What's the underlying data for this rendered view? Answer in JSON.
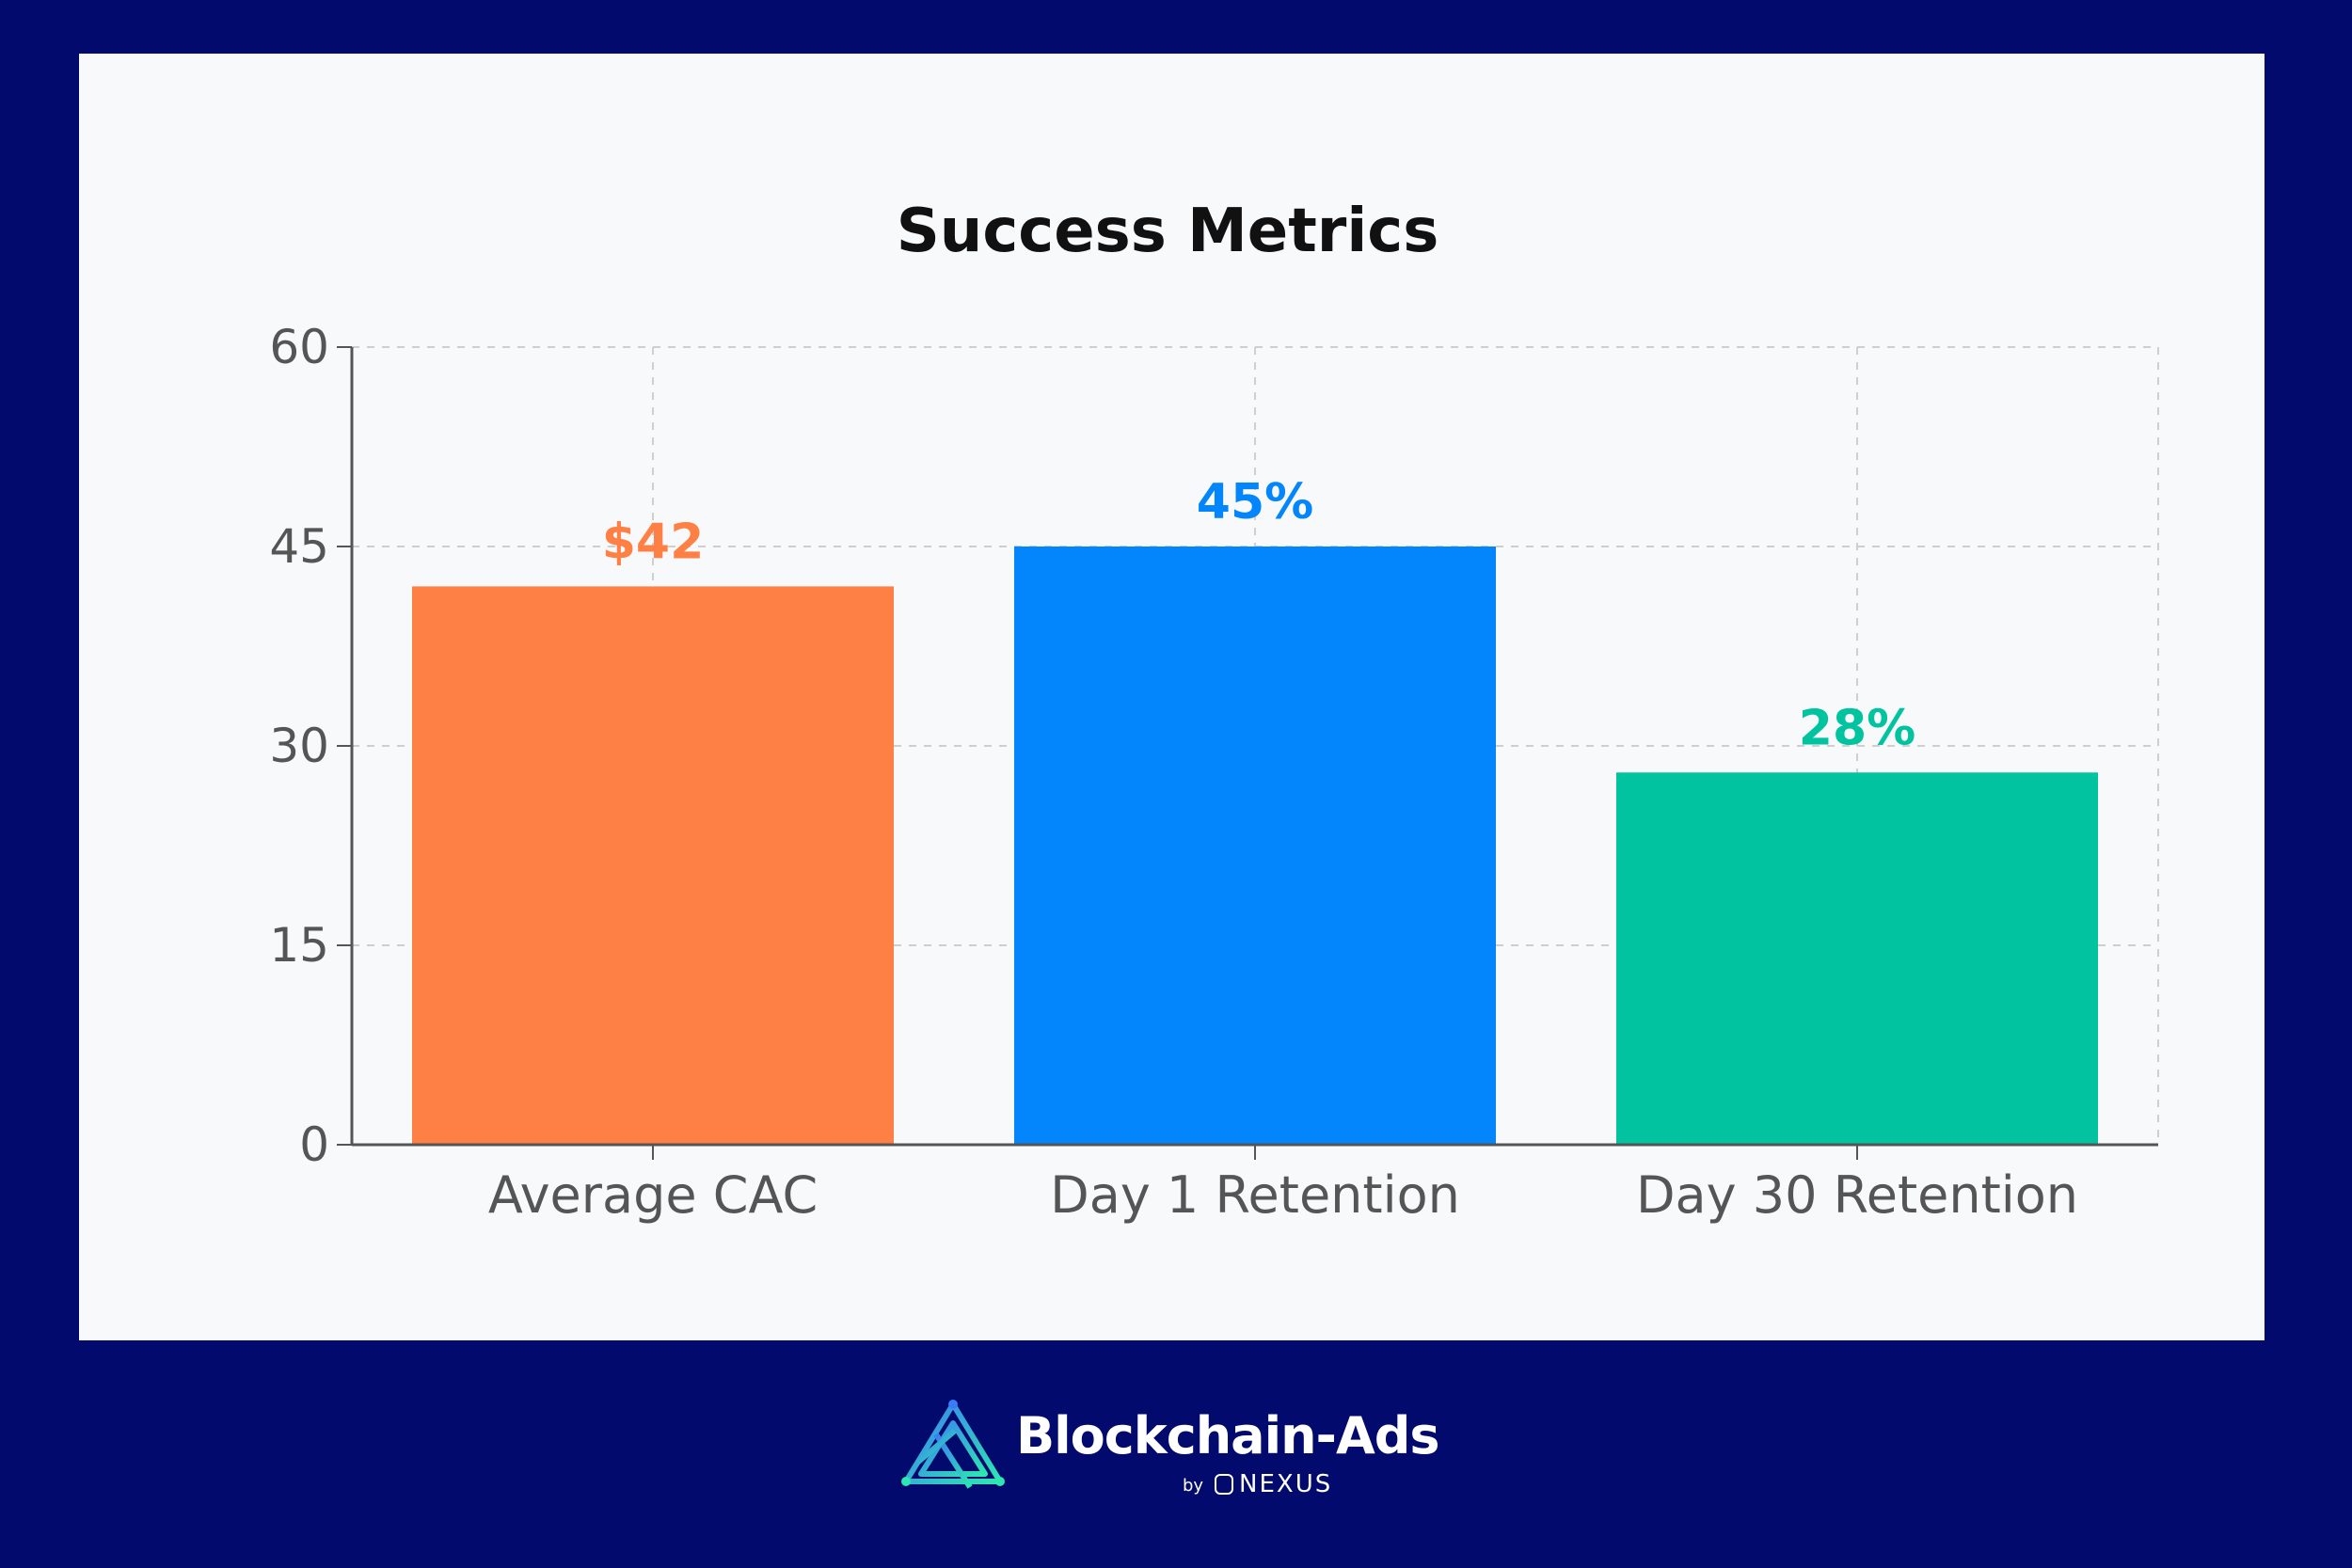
{
  "chart_data": {
    "type": "bar",
    "title": "Success Metrics",
    "categories": [
      "Average CAC",
      "Day 1 Retention",
      "Day 30 Retention"
    ],
    "values": [
      42,
      45,
      28
    ],
    "data_labels": [
      "$42",
      "45%",
      "28%"
    ],
    "colors": [
      "#ff8045",
      "#0385fc",
      "#02c39f"
    ],
    "yticks": [
      0,
      15,
      30,
      45,
      60
    ],
    "ylim": [
      0,
      60
    ],
    "grid": true,
    "xlabel": "",
    "ylabel": ""
  },
  "branding": {
    "name": "Blockchain-Ads",
    "by": "by",
    "partner": "NEXUS"
  }
}
